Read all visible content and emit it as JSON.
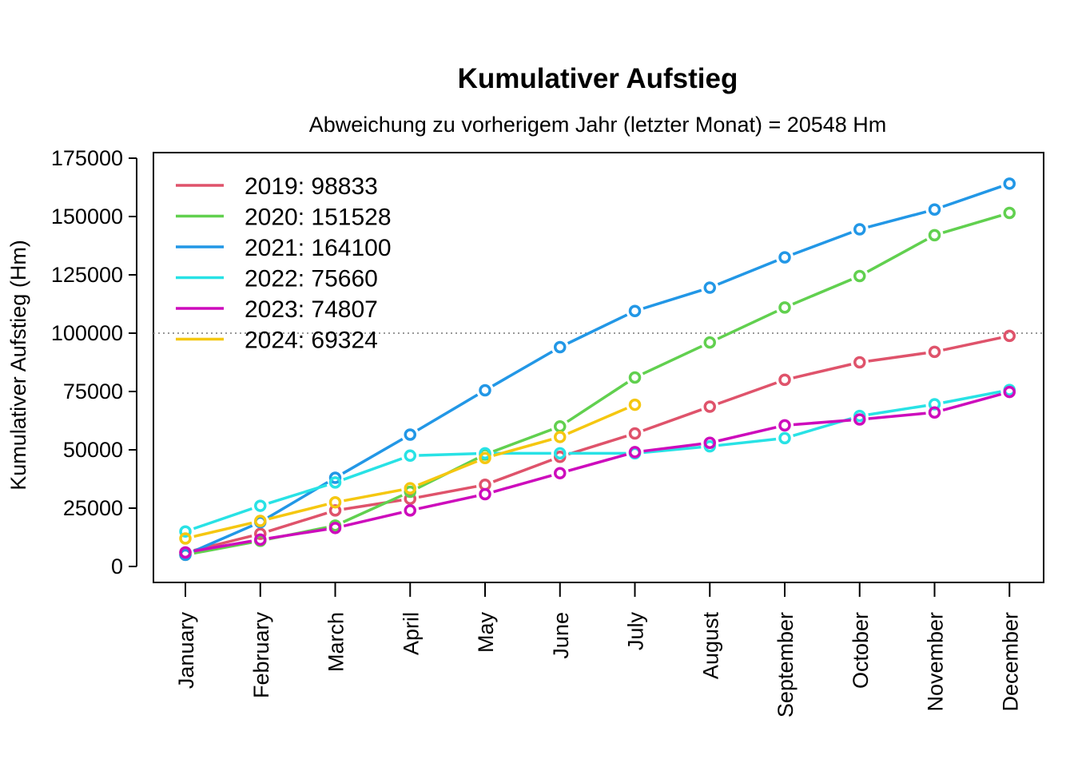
{
  "chart_data": {
    "type": "line",
    "title": "Kumulativer Aufstieg",
    "subtitle": "Abweichung zu vorherigem Jahr (letzter Monat) = 20548 Hm",
    "xlabel": "",
    "ylabel": "Kumulativer Aufstieg (Hm)",
    "categories": [
      "January",
      "February",
      "March",
      "April",
      "May",
      "June",
      "July",
      "August",
      "September",
      "October",
      "November",
      "December"
    ],
    "ylim": [
      0,
      175000
    ],
    "yticks": [
      0,
      25000,
      50000,
      75000,
      100000,
      125000,
      150000,
      175000
    ],
    "ytick_labels": [
      "0",
      "25000",
      "50000",
      "75000",
      "100000",
      "125000",
      "150000",
      "175000"
    ],
    "reference_line": 100000,
    "grid": false,
    "legend_position": "top-left",
    "series": [
      {
        "name": "2019",
        "legend_label": "2019: 98833",
        "color": "#DF536B",
        "values": [
          6000,
          14000,
          24000,
          29000,
          35000,
          47000,
          57000,
          68500,
          80000,
          87500,
          92000,
          98833
        ]
      },
      {
        "name": "2020",
        "legend_label": "2020: 151528",
        "color": "#61D04F",
        "values": [
          5000,
          11000,
          17500,
          32000,
          48000,
          60000,
          81000,
          96000,
          111000,
          124500,
          142000,
          151528
        ]
      },
      {
        "name": "2021",
        "legend_label": "2021: 164100",
        "color": "#2297E6",
        "values": [
          5000,
          19000,
          38000,
          56500,
          75500,
          94000,
          109500,
          119500,
          132500,
          144500,
          153000,
          164100
        ]
      },
      {
        "name": "2022",
        "legend_label": "2022: 75660",
        "color": "#28E2E5",
        "values": [
          15000,
          26000,
          36000,
          47500,
          48500,
          48500,
          48500,
          51500,
          55000,
          64500,
          69500,
          75660
        ]
      },
      {
        "name": "2023",
        "legend_label": "2023: 74807",
        "color": "#CD0BBC",
        "values": [
          6000,
          11500,
          16500,
          24000,
          31000,
          40000,
          49000,
          53000,
          60500,
          63000,
          66000,
          74807
        ]
      },
      {
        "name": "2024",
        "legend_label": "2024: 69324",
        "color": "#F5C710",
        "values": [
          12000,
          19500,
          27500,
          33500,
          46500,
          55500,
          69324,
          null,
          null,
          null,
          null,
          null
        ]
      }
    ]
  }
}
